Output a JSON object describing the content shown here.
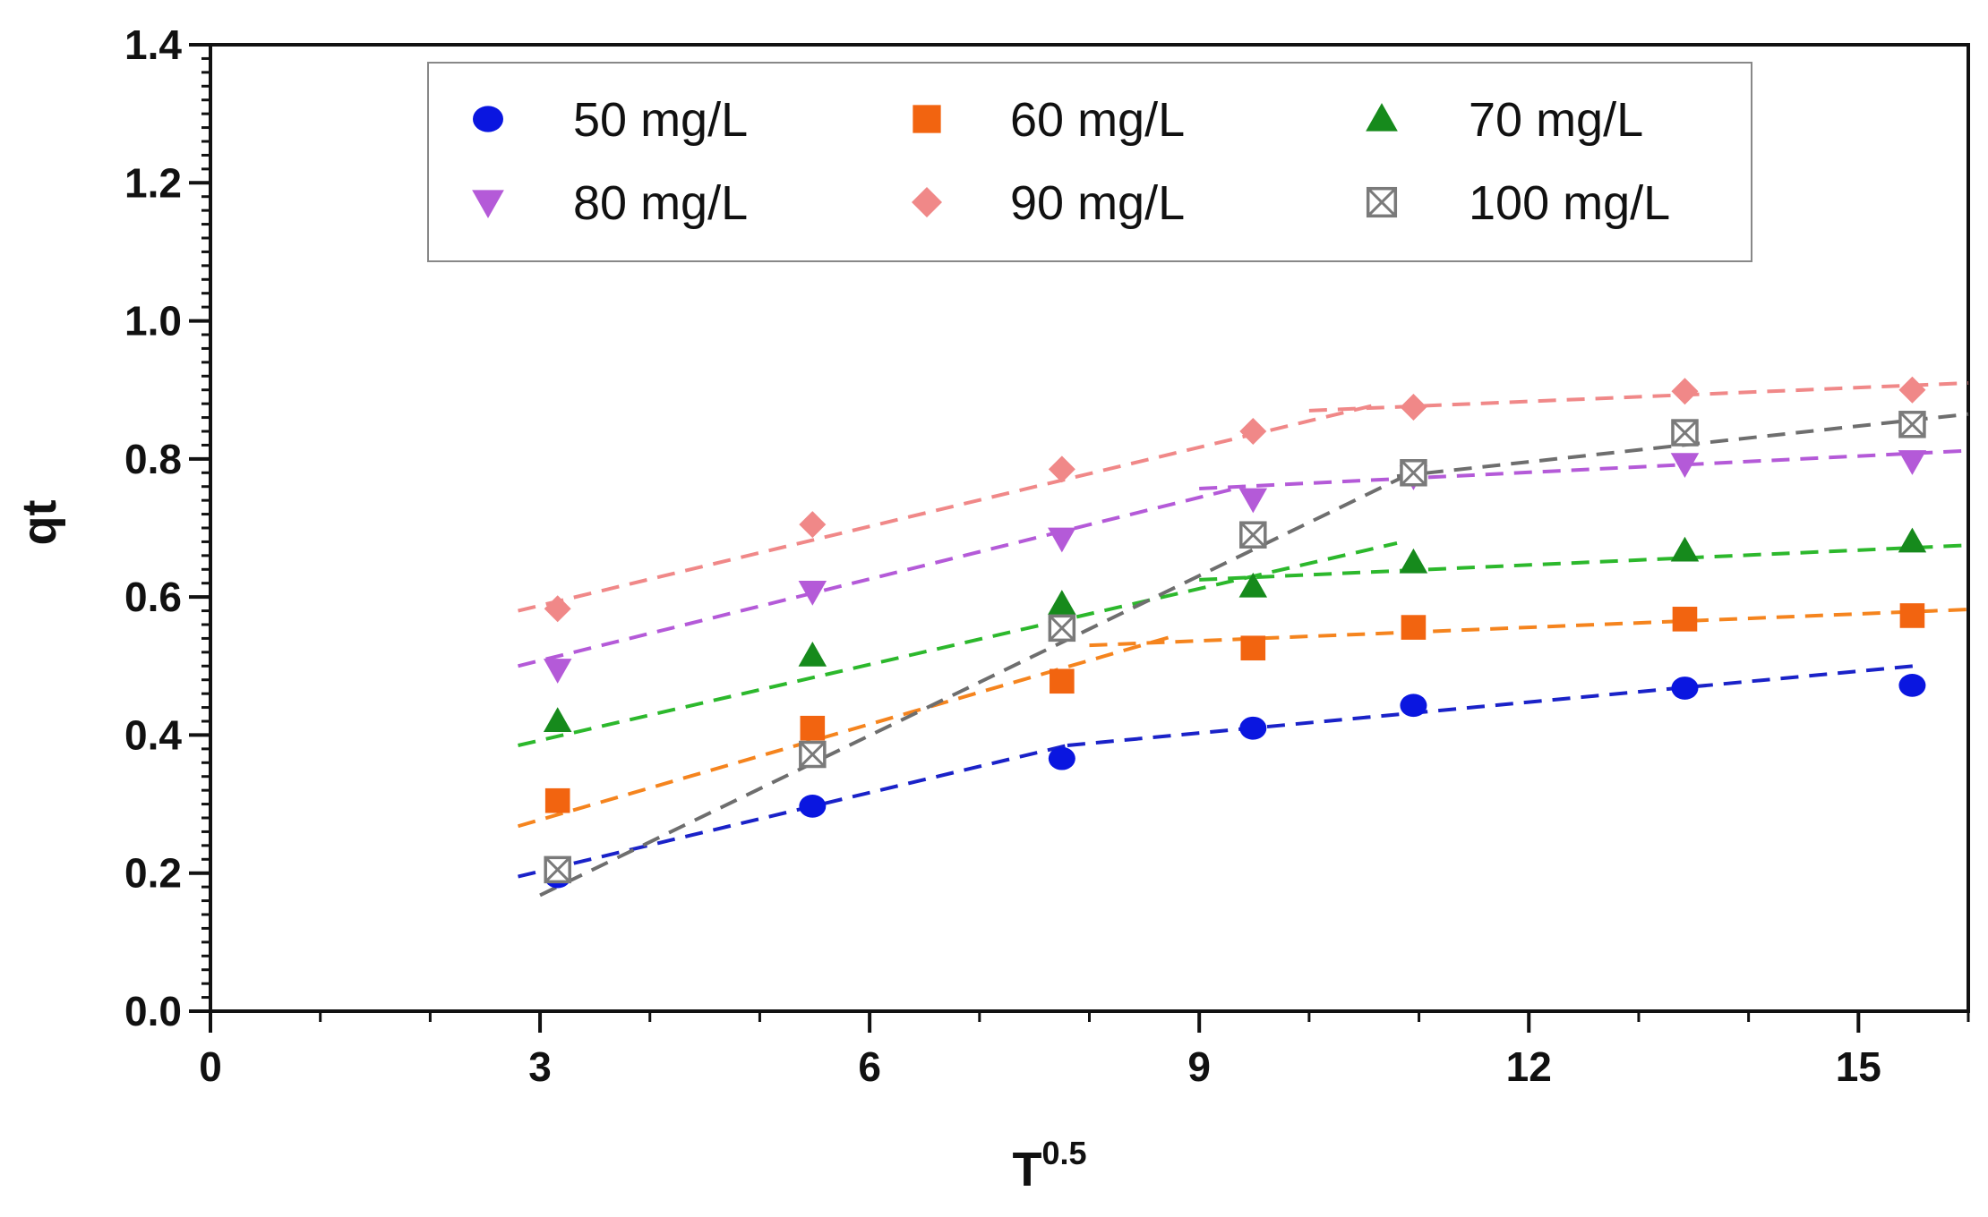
{
  "chart_data": {
    "type": "scatter",
    "title": "",
    "xlabel": "T",
    "xlabel_sup": "0.5",
    "ylabel": "qt",
    "xlim": [
      0,
      16
    ],
    "ylim": [
      0,
      1.4
    ],
    "xticks": [
      0,
      3,
      6,
      9,
      12,
      15
    ],
    "xtick_labels": [
      "0",
      "3",
      "6",
      "9",
      "12",
      "15"
    ],
    "yticks": [
      0,
      0.2,
      0.4,
      0.6,
      0.8,
      1.0,
      1.2,
      1.4
    ],
    "ytick_labels": [
      "0.0",
      "0.2",
      "0.4",
      "0.6",
      "0.8",
      "1.0",
      "1.2",
      "1.4"
    ],
    "grid": false,
    "legend_position": "top",
    "x": [
      3.16,
      5.48,
      7.75,
      9.49,
      10.95,
      13.42,
      15.49
    ],
    "series": [
      {
        "name": "50 mg/L",
        "marker": "circle",
        "color": "#0a16e0",
        "line_color": "#1a22c8",
        "values": [
          0.195,
          0.297,
          0.366,
          0.41,
          0.443,
          0.468,
          0.472
        ],
        "fit_segments": [
          [
            [
              2.8,
              0.195
            ],
            [
              7.8,
              0.385
            ]
          ],
          [
            [
              7.8,
              0.385
            ],
            [
              15.5,
              0.5
            ]
          ]
        ]
      },
      {
        "name": "60 mg/L",
        "marker": "square",
        "color": "#f26410",
        "line_color": "#f5841e",
        "values": [
          0.305,
          0.41,
          0.478,
          0.526,
          0.556,
          0.568,
          0.573
        ],
        "fit_segments": [
          [
            [
              2.8,
              0.268
            ],
            [
              8.8,
              0.545
            ]
          ],
          [
            [
              8.0,
              0.53
            ],
            [
              16.0,
              0.582
            ]
          ]
        ]
      },
      {
        "name": "70 mg/L",
        "marker": "triangle-up",
        "color": "#168a1c",
        "line_color": "#2cb82c",
        "values": [
          0.42,
          0.515,
          0.59,
          0.615,
          0.65,
          0.667,
          0.68
        ],
        "fit_segments": [
          [
            [
              2.8,
              0.385
            ],
            [
              10.8,
              0.678
            ]
          ],
          [
            [
              9.0,
              0.625
            ],
            [
              16.0,
              0.675
            ]
          ]
        ]
      },
      {
        "name": "80 mg/L",
        "marker": "triangle-down",
        "color": "#b45ad8",
        "line_color": "#b45ad8",
        "values": [
          0.495,
          0.608,
          0.685,
          0.742,
          0.775,
          0.793,
          0.797
        ],
        "fit_segments": [
          [
            [
              2.8,
              0.5
            ],
            [
              9.4,
              0.76
            ]
          ],
          [
            [
              9.0,
              0.757
            ],
            [
              16.0,
              0.812
            ]
          ]
        ]
      },
      {
        "name": "90 mg/L",
        "marker": "diamond",
        "color": "#f08888",
        "line_color": "#f08888",
        "values": [
          0.583,
          0.705,
          0.785,
          0.84,
          0.875,
          0.898,
          0.9
        ],
        "fit_segments": [
          [
            [
              2.8,
              0.58
            ],
            [
              10.6,
              0.878
            ]
          ],
          [
            [
              10.0,
              0.87
            ],
            [
              16.0,
              0.91
            ]
          ]
        ]
      },
      {
        "name": "100 mg/L",
        "marker": "boxed-x",
        "color": "#7a7a7a",
        "line_color": "#6e6e6e",
        "values": [
          0.205,
          0.372,
          0.555,
          0.69,
          0.78,
          0.838,
          0.85
        ],
        "fit_segments": [
          [
            [
              3.0,
              0.168
            ],
            [
              11.0,
              0.785
            ]
          ],
          [
            [
              10.8,
              0.775
            ],
            [
              16.0,
              0.865
            ]
          ]
        ]
      }
    ]
  }
}
